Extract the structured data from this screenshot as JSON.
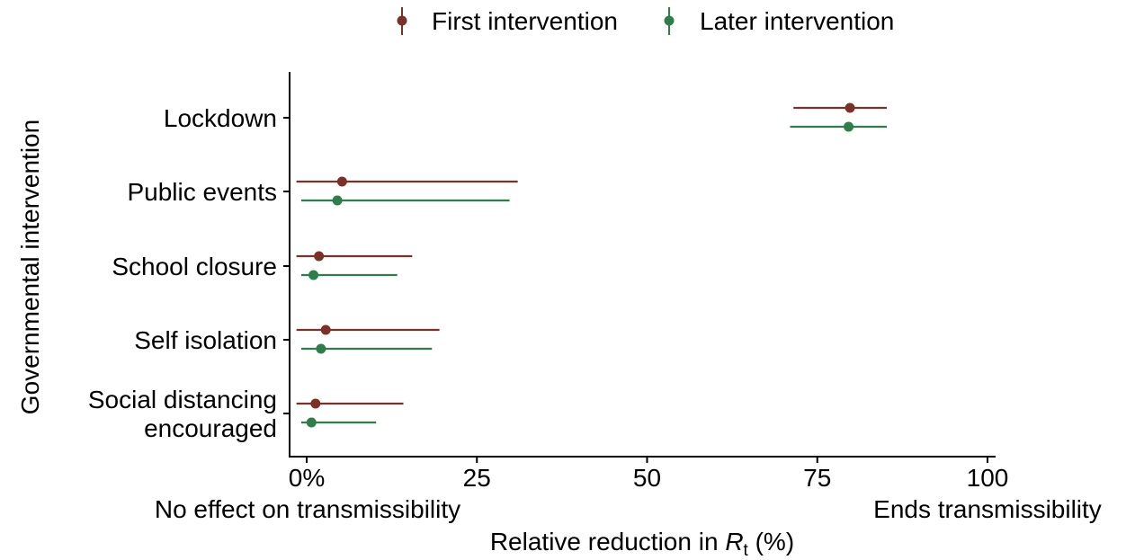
{
  "chart_data": {
    "type": "forest",
    "title": "",
    "xlabel_prefix": "Relative reduction in ",
    "xlabel_var": "R",
    "xlabel_sub": "t",
    "xlabel_suffix": " (%)",
    "ylabel": "Governmental intervention",
    "xlim": [
      -3,
      101
    ],
    "xticks": [
      {
        "value": 0,
        "label": "0%"
      },
      {
        "value": 25,
        "label": "25"
      },
      {
        "value": 50,
        "label": "50"
      },
      {
        "value": 75,
        "label": "75"
      },
      {
        "value": 100,
        "label": "100"
      }
    ],
    "x_endpoint_labels": {
      "left": "No effect on transmissibility",
      "right": "Ends transmissibility"
    },
    "categories": [
      {
        "lines": [
          "Lockdown"
        ]
      },
      {
        "lines": [
          "Public events"
        ]
      },
      {
        "lines": [
          "School closure"
        ]
      },
      {
        "lines": [
          "Self isolation"
        ]
      },
      {
        "lines": [
          "Social distancing",
          "encouraged"
        ]
      }
    ],
    "legend_position": "top",
    "grid": false,
    "series": [
      {
        "name": "First intervention",
        "color": "#7b3128",
        "points": [
          {
            "category": "Lockdown",
            "estimate": 79.8,
            "lower": 71.5,
            "upper": 85.2
          },
          {
            "category": "Public events",
            "estimate": 5.2,
            "lower": -1.5,
            "upper": 31.0
          },
          {
            "category": "School closure",
            "estimate": 1.8,
            "lower": -1.5,
            "upper": 15.5
          },
          {
            "category": "Self isolation",
            "estimate": 2.8,
            "lower": -1.5,
            "upper": 19.5
          },
          {
            "category": "Social distancing encouraged",
            "estimate": 1.3,
            "lower": -1.5,
            "upper": 14.2
          }
        ]
      },
      {
        "name": "Later intervention",
        "color": "#2e7d4a",
        "points": [
          {
            "category": "Lockdown",
            "estimate": 79.6,
            "lower": 71.0,
            "upper": 85.2
          },
          {
            "category": "Public events",
            "estimate": 4.5,
            "lower": -0.8,
            "upper": 29.8
          },
          {
            "category": "School closure",
            "estimate": 1.0,
            "lower": -0.8,
            "upper": 13.3
          },
          {
            "category": "Self isolation",
            "estimate": 2.1,
            "lower": -0.8,
            "upper": 18.4
          },
          {
            "category": "Social distancing encouraged",
            "estimate": 0.7,
            "lower": -0.8,
            "upper": 10.2
          }
        ]
      }
    ]
  }
}
